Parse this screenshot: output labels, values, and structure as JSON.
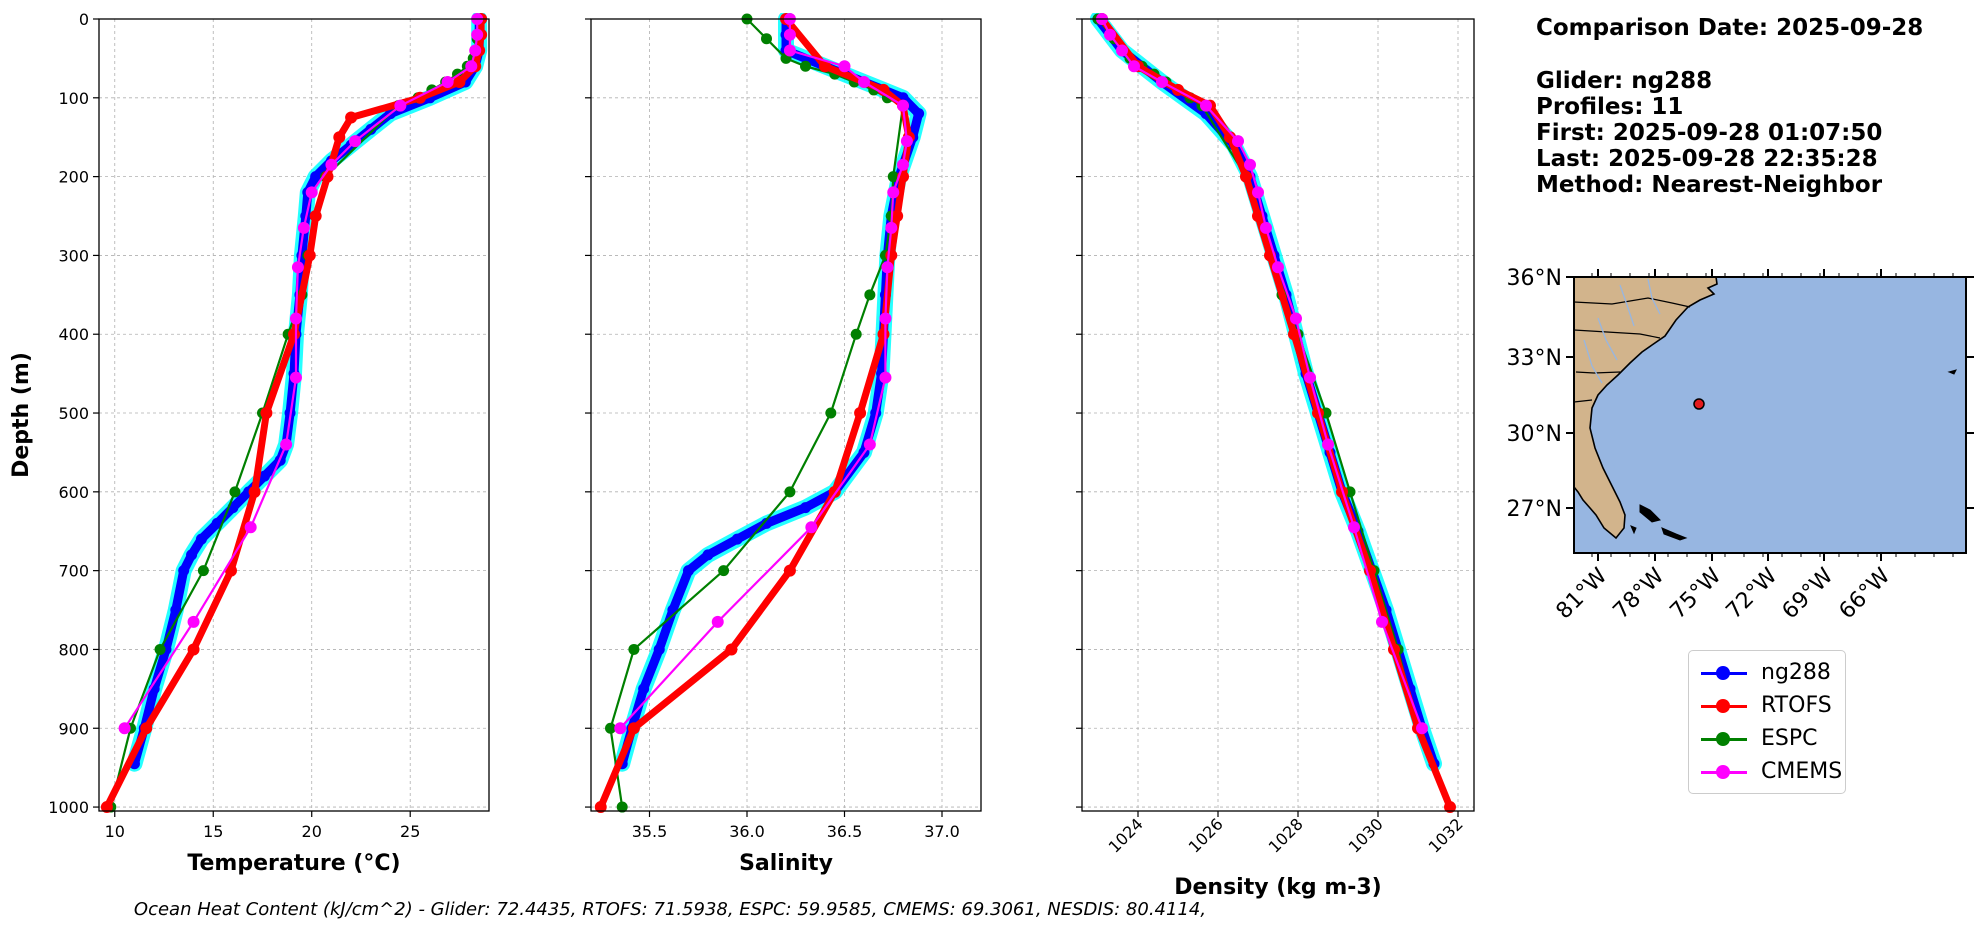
{
  "info": {
    "comparison_date": "Comparison Date: 2025-09-28",
    "glider": "Glider: ng288",
    "profiles": "Profiles: 11",
    "first": "First: 2025-09-28 01:07:50",
    "last": "Last: 2025-09-28 22:35:28",
    "method": "Method: Nearest-Neighbor"
  },
  "footer": "Ocean Heat Content (kJ/cm^2) - Glider: 72.4435,  RTOFS: 71.5938,  ESPC: 59.9585,  CMEMS: 69.3061,  NESDIS: 80.4114,",
  "colors": {
    "ng288": "#0000ff",
    "ng288_spread": "#00ffff",
    "RTOFS": "#ff0000",
    "ESPC": "#008000",
    "CMEMS": "#ff00ff",
    "land": "#d2b48c",
    "ocean": "#97b6e1",
    "grid": "#b0b0b0"
  },
  "legend": [
    {
      "label": "ng288",
      "color": "#0000ff"
    },
    {
      "label": "RTOFS",
      "color": "#ff0000"
    },
    {
      "label": "ESPC",
      "color": "#008000"
    },
    {
      "label": "CMEMS",
      "color": "#ff00ff"
    }
  ],
  "chart_data": [
    {
      "type": "line",
      "panel": "temperature",
      "xlabel": "Temperature (°C)",
      "ylabel": "Depth (m)",
      "xlim": [
        9.2,
        29.0
      ],
      "ylim": [
        1005,
        0
      ],
      "y_inverted": true,
      "xticks": [
        10,
        15,
        20,
        25
      ],
      "yticks": [
        0,
        100,
        200,
        300,
        400,
        500,
        600,
        700,
        800,
        900,
        1000
      ],
      "grid": true,
      "series": [
        {
          "name": "ng288",
          "depth": [
            0,
            20,
            40,
            60,
            80,
            100,
            120,
            140,
            160,
            180,
            200,
            220,
            250,
            300,
            350,
            400,
            450,
            500,
            540,
            560,
            580,
            600,
            620,
            640,
            660,
            680,
            700,
            750,
            800,
            850,
            900,
            945
          ],
          "values": [
            28.5,
            28.5,
            28.5,
            28.3,
            27.8,
            26.0,
            24.0,
            23.0,
            22.0,
            21.0,
            20.2,
            19.8,
            19.7,
            19.5,
            19.4,
            19.2,
            19.1,
            18.9,
            18.7,
            18.4,
            17.6,
            16.8,
            16.0,
            15.2,
            14.4,
            13.9,
            13.5,
            13.1,
            12.6,
            12.0,
            11.5,
            11.0
          ]
        },
        {
          "name": "RTOFS",
          "depth": [
            0,
            20,
            40,
            60,
            80,
            100,
            125,
            150,
            200,
            250,
            300,
            400,
            500,
            600,
            700,
            800,
            900,
            1000
          ],
          "values": [
            28.6,
            28.6,
            28.5,
            28.3,
            27.5,
            25.5,
            22.0,
            21.4,
            20.8,
            20.2,
            19.9,
            19.1,
            17.7,
            17.1,
            15.9,
            14.0,
            11.6,
            9.6
          ]
        },
        {
          "name": "ESPC",
          "depth": [
            0,
            25,
            50,
            60,
            70,
            80,
            90,
            100,
            110,
            200,
            250,
            300,
            350,
            400,
            500,
            600,
            700,
            800,
            900,
            1000
          ],
          "values": [
            28.6,
            28.4,
            28.2,
            27.9,
            27.4,
            26.8,
            26.1,
            25.4,
            24.4,
            20.7,
            20.2,
            19.8,
            19.5,
            18.8,
            17.5,
            16.1,
            14.5,
            12.3,
            10.8,
            9.8
          ]
        },
        {
          "name": "CMEMS",
          "depth": [
            0,
            20,
            40,
            60,
            80,
            110,
            155,
            185,
            220,
            265,
            315,
            380,
            455,
            540,
            645,
            765,
            900
          ],
          "values": [
            28.4,
            28.4,
            28.3,
            28.1,
            26.9,
            24.5,
            22.2,
            21.0,
            20.0,
            19.6,
            19.3,
            19.2,
            19.2,
            18.7,
            16.9,
            14.0,
            10.5
          ]
        }
      ]
    },
    {
      "type": "line",
      "panel": "salinity",
      "xlabel": "Salinity",
      "ylabel": "",
      "xlim": [
        35.2,
        37.2
      ],
      "ylim": [
        1005,
        0
      ],
      "y_inverted": true,
      "xticks": [
        35.5,
        36.0,
        36.5,
        37.0
      ],
      "xtick_labels": [
        "35.5",
        "36.0",
        "36.5",
        "37.0"
      ],
      "yticks": [
        0,
        100,
        200,
        300,
        400,
        500,
        600,
        700,
        800,
        900,
        1000
      ],
      "grid": true,
      "series": [
        {
          "name": "ng288",
          "depth": [
            0,
            20,
            40,
            60,
            80,
            100,
            120,
            150,
            200,
            250,
            300,
            350,
            400,
            450,
            500,
            550,
            600,
            620,
            640,
            660,
            680,
            700,
            750,
            800,
            850,
            900,
            945
          ],
          "values": [
            36.2,
            36.2,
            36.2,
            36.4,
            36.6,
            36.8,
            36.88,
            36.85,
            36.78,
            36.74,
            36.72,
            36.71,
            36.7,
            36.69,
            36.66,
            36.6,
            36.45,
            36.3,
            36.1,
            35.95,
            35.8,
            35.7,
            35.62,
            35.55,
            35.47,
            35.41,
            35.36
          ]
        },
        {
          "name": "RTOFS",
          "depth": [
            0,
            60,
            90,
            110,
            150,
            200,
            250,
            300,
            400,
            500,
            600,
            700,
            800,
            900,
            1000
          ],
          "values": [
            36.2,
            36.4,
            36.7,
            36.8,
            36.83,
            36.8,
            36.77,
            36.74,
            36.7,
            36.58,
            36.45,
            36.22,
            35.92,
            35.42,
            35.25
          ]
        },
        {
          "name": "ESPC",
          "depth": [
            0,
            25,
            50,
            60,
            70,
            80,
            90,
            100,
            110,
            200,
            250,
            300,
            350,
            400,
            500,
            600,
            700,
            800,
            900,
            1000
          ],
          "values": [
            36.0,
            36.1,
            36.2,
            36.3,
            36.45,
            36.55,
            36.65,
            36.72,
            36.8,
            36.75,
            36.74,
            36.71,
            36.63,
            36.56,
            36.43,
            36.22,
            35.88,
            35.42,
            35.3,
            35.36
          ]
        },
        {
          "name": "CMEMS",
          "depth": [
            0,
            20,
            40,
            60,
            80,
            110,
            155,
            185,
            220,
            265,
            315,
            380,
            455,
            540,
            645,
            765,
            900
          ],
          "values": [
            36.22,
            36.22,
            36.22,
            36.5,
            36.6,
            36.8,
            36.82,
            36.8,
            36.75,
            36.74,
            36.72,
            36.71,
            36.71,
            36.63,
            36.33,
            35.85,
            35.35
          ]
        }
      ]
    },
    {
      "type": "line",
      "panel": "density",
      "xlabel": "Density (kg m-3)",
      "ylabel": "",
      "xlim": [
        1022.6,
        1032.4
      ],
      "ylim": [
        1005,
        0
      ],
      "y_inverted": true,
      "xticks": [
        1024,
        1026,
        1028,
        1030,
        1032
      ],
      "xtick_labels": [
        "1024",
        "1026",
        "1028",
        "1030",
        "1032"
      ],
      "yticks": [
        0,
        100,
        200,
        300,
        400,
        500,
        600,
        700,
        800,
        900,
        1000
      ],
      "grid": true,
      "series": [
        {
          "name": "ng288",
          "depth": [
            0,
            40,
            80,
            120,
            160,
            200,
            250,
            300,
            350,
            400,
            450,
            500,
            550,
            600,
            650,
            700,
            750,
            800,
            850,
            900,
            945
          ],
          "values": [
            1023.0,
            1023.6,
            1024.6,
            1025.7,
            1026.4,
            1026.8,
            1027.1,
            1027.4,
            1027.7,
            1027.95,
            1028.2,
            1028.5,
            1028.8,
            1029.1,
            1029.5,
            1029.85,
            1030.2,
            1030.5,
            1030.8,
            1031.1,
            1031.4
          ]
        },
        {
          "name": "RTOFS",
          "depth": [
            0,
            60,
            90,
            110,
            150,
            200,
            250,
            300,
            400,
            500,
            600,
            700,
            800,
            900,
            1000
          ],
          "values": [
            1023.1,
            1024.0,
            1025.0,
            1025.8,
            1026.3,
            1026.7,
            1027.0,
            1027.3,
            1027.9,
            1028.5,
            1029.1,
            1029.8,
            1030.4,
            1031.0,
            1031.8
          ]
        },
        {
          "name": "ESPC",
          "depth": [
            0,
            25,
            50,
            60,
            70,
            80,
            90,
            100,
            110,
            200,
            250,
            300,
            350,
            400,
            500,
            600,
            700,
            800,
            900,
            1000
          ],
          "values": [
            1023.0,
            1023.4,
            1023.8,
            1024.1,
            1024.4,
            1024.7,
            1025.0,
            1025.3,
            1025.6,
            1026.7,
            1027.0,
            1027.3,
            1027.6,
            1028.0,
            1028.7,
            1029.3,
            1029.9,
            1030.5,
            1031.0,
            1031.8
          ]
        },
        {
          "name": "CMEMS",
          "depth": [
            0,
            20,
            40,
            60,
            80,
            110,
            155,
            185,
            220,
            265,
            315,
            380,
            455,
            540,
            645,
            765,
            900
          ],
          "values": [
            1023.1,
            1023.3,
            1023.6,
            1023.9,
            1024.6,
            1025.7,
            1026.5,
            1026.8,
            1027.0,
            1027.2,
            1027.5,
            1027.95,
            1028.3,
            1028.75,
            1029.4,
            1030.1,
            1031.1
          ]
        }
      ]
    },
    {
      "type": "map",
      "panel": "location",
      "lat_ticks": [
        "36°N",
        "33°N",
        "30°N",
        "27°N"
      ],
      "lon_ticks": [
        "81°W",
        "78°W",
        "75°W",
        "72°W",
        "69°W",
        "66°W"
      ],
      "glider_position": {
        "lat": 31.2,
        "lon": -76.3
      }
    }
  ]
}
